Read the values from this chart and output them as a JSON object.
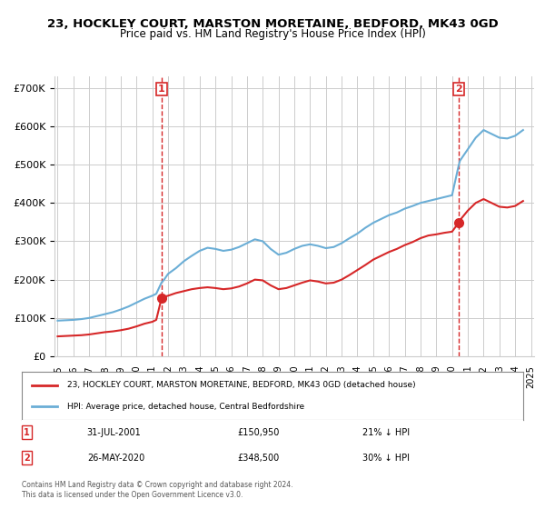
{
  "title": "23, HOCKLEY COURT, MARSTON MORETAINE, BEDFORD, MK43 0GD",
  "subtitle": "Price paid vs. HM Land Registry's House Price Index (HPI)",
  "hpi_color": "#6baed6",
  "price_color": "#d62728",
  "marker1_date_idx": 6.58,
  "marker2_date_idx": 25.4,
  "marker1_price": 150950,
  "marker2_price": 348500,
  "marker1_label": "1",
  "marker2_label": "2",
  "marker1_date_str": "31-JUL-2001",
  "marker2_date_str": "26-MAY-2020",
  "marker1_hpi_pct": "21% ↓ HPI",
  "marker2_hpi_pct": "30% ↓ HPI",
  "legend_line1": "23, HOCKLEY COURT, MARSTON MORETAINE, BEDFORD, MK43 0GD (detached house)",
  "legend_line2": "HPI: Average price, detached house, Central Bedfordshire",
  "footer": "Contains HM Land Registry data © Crown copyright and database right 2024.\nThis data is licensed under the Open Government Licence v3.0.",
  "vline_color": "#d62728",
  "ylim": [
    0,
    730000
  ],
  "background_color": "#ffffff",
  "grid_color": "#cccccc",
  "hpi_x": [
    1995,
    1995.5,
    1996,
    1996.5,
    1997,
    1997.5,
    1998,
    1998.5,
    1999,
    1999.5,
    2000,
    2000.5,
    2001,
    2001.25,
    2001.58,
    2001.75,
    2002,
    2002.5,
    2003,
    2003.5,
    2004,
    2004.5,
    2005,
    2005.5,
    2006,
    2006.5,
    2007,
    2007.5,
    2008,
    2008.5,
    2009,
    2009.5,
    2010,
    2010.5,
    2011,
    2011.5,
    2012,
    2012.5,
    2013,
    2013.5,
    2014,
    2014.5,
    2015,
    2015.5,
    2016,
    2016.5,
    2017,
    2017.5,
    2018,
    2018.5,
    2019,
    2019.5,
    2020,
    2020.42,
    2020.5,
    2021,
    2021.5,
    2022,
    2022.5,
    2023,
    2023.5,
    2024,
    2024.5
  ],
  "hpi_y": [
    93000,
    94000,
    95000,
    97000,
    100000,
    105000,
    110000,
    115000,
    122000,
    130000,
    140000,
    150000,
    158000,
    163000,
    192000,
    200000,
    215000,
    230000,
    248000,
    262000,
    275000,
    283000,
    280000,
    275000,
    278000,
    285000,
    295000,
    305000,
    300000,
    280000,
    265000,
    270000,
    280000,
    288000,
    292000,
    288000,
    282000,
    285000,
    295000,
    308000,
    320000,
    335000,
    348000,
    358000,
    368000,
    375000,
    385000,
    392000,
    400000,
    405000,
    410000,
    415000,
    420000,
    498000,
    510000,
    540000,
    570000,
    590000,
    580000,
    570000,
    568000,
    575000,
    590000
  ],
  "price_x": [
    1995,
    1995.5,
    1996,
    1996.5,
    1997,
    1997.5,
    1998,
    1998.5,
    1999,
    1999.5,
    2000,
    2000.5,
    2001,
    2001.25,
    2001.58,
    2001.75,
    2002,
    2002.5,
    2003,
    2003.5,
    2004,
    2004.5,
    2005,
    2005.5,
    2006,
    2006.5,
    2007,
    2007.5,
    2008,
    2008.5,
    2009,
    2009.5,
    2010,
    2010.5,
    2011,
    2011.5,
    2012,
    2012.5,
    2013,
    2013.5,
    2014,
    2014.5,
    2015,
    2015.5,
    2016,
    2016.5,
    2017,
    2017.5,
    2018,
    2018.5,
    2019,
    2019.5,
    2020,
    2020.42,
    2020.5,
    2021,
    2021.5,
    2022,
    2022.5,
    2023,
    2023.5,
    2024,
    2024.5
  ],
  "price_y": [
    52000,
    53000,
    54000,
    55000,
    57000,
    60000,
    63000,
    65000,
    68000,
    72000,
    78000,
    85000,
    90000,
    95000,
    150950,
    155000,
    158000,
    165000,
    170000,
    175000,
    178000,
    180000,
    178000,
    175000,
    177000,
    182000,
    190000,
    200000,
    198000,
    185000,
    175000,
    178000,
    185000,
    192000,
    198000,
    195000,
    190000,
    192000,
    200000,
    212000,
    225000,
    238000,
    252000,
    262000,
    272000,
    280000,
    290000,
    298000,
    308000,
    315000,
    318000,
    322000,
    325000,
    348500,
    355000,
    380000,
    400000,
    410000,
    400000,
    390000,
    388000,
    392000,
    405000
  ],
  "xticks": [
    1995,
    1996,
    1997,
    1998,
    1999,
    2000,
    2001,
    2002,
    2003,
    2004,
    2005,
    2006,
    2007,
    2008,
    2009,
    2010,
    2011,
    2012,
    2013,
    2014,
    2015,
    2016,
    2017,
    2018,
    2019,
    2020,
    2021,
    2022,
    2023,
    2024,
    2025
  ],
  "xlim": [
    1994.8,
    2025.2
  ]
}
